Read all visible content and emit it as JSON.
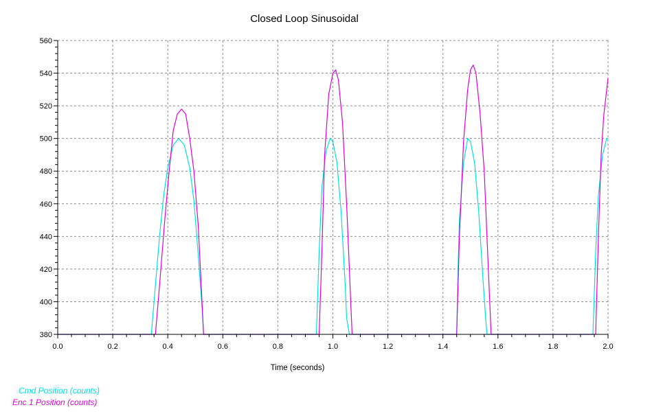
{
  "chart_data": {
    "type": "line",
    "title": "Closed Loop Sinusoidal",
    "xlabel": "Time (seconds)",
    "ylabel": "",
    "xlim": [
      0.0,
      2.0
    ],
    "ylim": [
      380,
      560
    ],
    "x_ticks": [
      "0.0",
      "0.2",
      "0.4",
      "0.6",
      "0.8",
      "1.0",
      "1.2",
      "1.4",
      "1.6",
      "1.8",
      "2.0"
    ],
    "y_ticks": [
      "380",
      "400",
      "420",
      "440",
      "460",
      "480",
      "500",
      "520",
      "540",
      "560"
    ],
    "grid": true,
    "legend_position": "bottom-left",
    "series": [
      {
        "name": "Cmd Position (counts)",
        "color": "#00e0e0",
        "points": [
          [
            0.0,
            380
          ],
          [
            0.34,
            380
          ],
          [
            0.355,
            410
          ],
          [
            0.37,
            440
          ],
          [
            0.385,
            465
          ],
          [
            0.4,
            482
          ],
          [
            0.42,
            496
          ],
          [
            0.44,
            500
          ],
          [
            0.46,
            496
          ],
          [
            0.48,
            482
          ],
          [
            0.495,
            462
          ],
          [
            0.51,
            430
          ],
          [
            0.525,
            395
          ],
          [
            0.53,
            380
          ],
          [
            0.94,
            380
          ],
          [
            0.95,
            430
          ],
          [
            0.96,
            470
          ],
          [
            0.975,
            492
          ],
          [
            0.99,
            500
          ],
          [
            1.0,
            498
          ],
          [
            1.015,
            485
          ],
          [
            1.03,
            455
          ],
          [
            1.045,
            410
          ],
          [
            1.05,
            390
          ],
          [
            1.06,
            380
          ],
          [
            1.45,
            380
          ],
          [
            1.455,
            420
          ],
          [
            1.46,
            450
          ],
          [
            1.475,
            485
          ],
          [
            1.49,
            500
          ],
          [
            1.5,
            498
          ],
          [
            1.515,
            485
          ],
          [
            1.53,
            455
          ],
          [
            1.545,
            415
          ],
          [
            1.555,
            390
          ],
          [
            1.56,
            380
          ],
          [
            1.945,
            380
          ],
          [
            1.955,
            430
          ],
          [
            1.965,
            465
          ],
          [
            1.98,
            490
          ],
          [
            1.995,
            500
          ],
          [
            2.0,
            500
          ]
        ]
      },
      {
        "name": "Enc 1 Position (counts)",
        "color": "#dd00dd",
        "points": [
          [
            0.0,
            380
          ],
          [
            0.355,
            380
          ],
          [
            0.37,
            410
          ],
          [
            0.39,
            452
          ],
          [
            0.405,
            480
          ],
          [
            0.42,
            505
          ],
          [
            0.435,
            515
          ],
          [
            0.45,
            518
          ],
          [
            0.465,
            515
          ],
          [
            0.48,
            500
          ],
          [
            0.495,
            480
          ],
          [
            0.51,
            448
          ],
          [
            0.52,
            415
          ],
          [
            0.53,
            380
          ],
          [
            0.95,
            380
          ],
          [
            0.96,
            430
          ],
          [
            0.97,
            490
          ],
          [
            0.985,
            527
          ],
          [
            1.0,
            540
          ],
          [
            1.01,
            542
          ],
          [
            1.02,
            536
          ],
          [
            1.035,
            510
          ],
          [
            1.05,
            460
          ],
          [
            1.06,
            420
          ],
          [
            1.07,
            380
          ],
          [
            1.45,
            380
          ],
          [
            1.46,
            440
          ],
          [
            1.475,
            498
          ],
          [
            1.49,
            530
          ],
          [
            1.5,
            542
          ],
          [
            1.51,
            545
          ],
          [
            1.52,
            540
          ],
          [
            1.535,
            515
          ],
          [
            1.55,
            480
          ],
          [
            1.565,
            420
          ],
          [
            1.575,
            380
          ],
          [
            1.955,
            380
          ],
          [
            1.965,
            440
          ],
          [
            1.975,
            490
          ],
          [
            1.985,
            515
          ],
          [
            2.0,
            537
          ]
        ]
      }
    ]
  }
}
